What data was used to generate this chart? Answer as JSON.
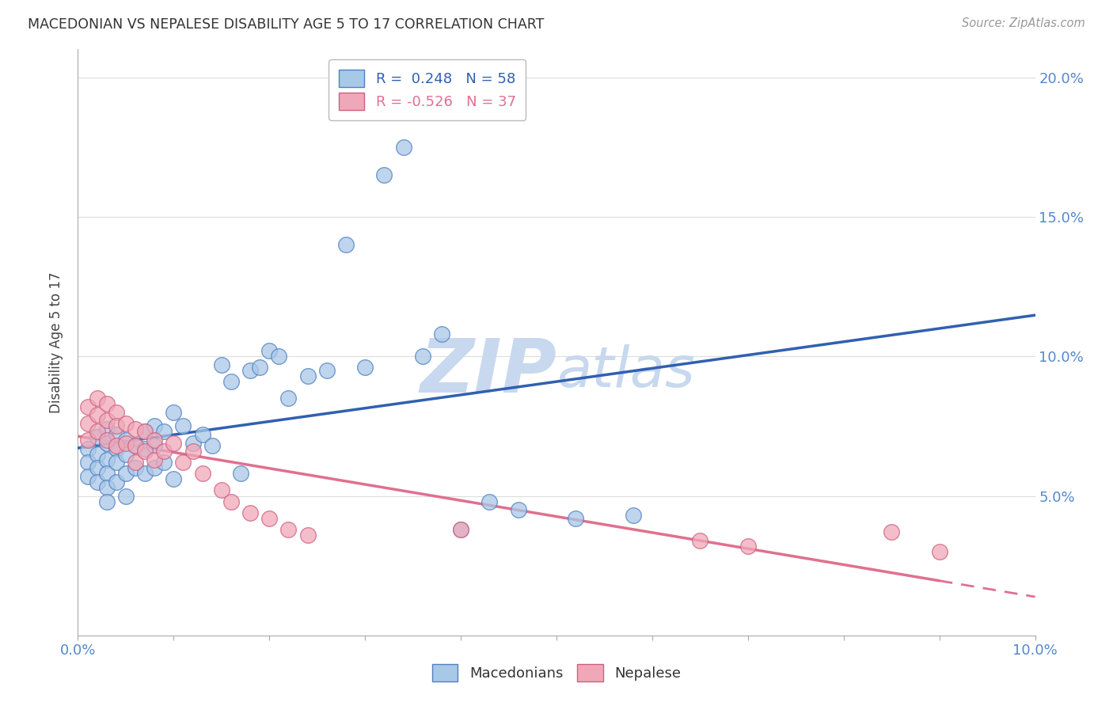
{
  "title": "MACEDONIAN VS NEPALESE DISABILITY AGE 5 TO 17 CORRELATION CHART",
  "source": "Source: ZipAtlas.com",
  "ylabel": "Disability Age 5 to 17",
  "xlim": [
    0.0,
    0.1
  ],
  "ylim": [
    0.0,
    0.21
  ],
  "yticks_right": [
    0.05,
    0.1,
    0.15,
    0.2
  ],
  "macedonian_R": 0.248,
  "macedonian_N": 58,
  "nepalese_R": -0.526,
  "nepalese_N": 37,
  "blue_fill": "#A8C8E8",
  "blue_edge": "#5080C0",
  "pink_fill": "#F0A8B8",
  "pink_edge": "#D06080",
  "blue_line": "#3060B0",
  "pink_line": "#E07090",
  "grid_color": "#DDDDDD",
  "background": "#FFFFFF",
  "watermark_color": "#C8D8EE",
  "macedonians_x": [
    0.001,
    0.001,
    0.001,
    0.002,
    0.002,
    0.002,
    0.002,
    0.003,
    0.003,
    0.003,
    0.003,
    0.003,
    0.003,
    0.004,
    0.004,
    0.004,
    0.004,
    0.005,
    0.005,
    0.005,
    0.005,
    0.006,
    0.006,
    0.007,
    0.007,
    0.007,
    0.008,
    0.008,
    0.008,
    0.009,
    0.009,
    0.01,
    0.01,
    0.011,
    0.012,
    0.013,
    0.014,
    0.015,
    0.016,
    0.017,
    0.018,
    0.019,
    0.02,
    0.021,
    0.022,
    0.024,
    0.026,
    0.028,
    0.03,
    0.032,
    0.034,
    0.036,
    0.038,
    0.04,
    0.043,
    0.046,
    0.052,
    0.058
  ],
  "macedonians_y": [
    0.067,
    0.062,
    0.057,
    0.071,
    0.065,
    0.06,
    0.055,
    0.074,
    0.069,
    0.063,
    0.058,
    0.053,
    0.048,
    0.072,
    0.067,
    0.062,
    0.055,
    0.07,
    0.065,
    0.058,
    0.05,
    0.068,
    0.06,
    0.073,
    0.067,
    0.058,
    0.075,
    0.068,
    0.06,
    0.073,
    0.062,
    0.08,
    0.056,
    0.075,
    0.069,
    0.072,
    0.068,
    0.097,
    0.091,
    0.058,
    0.095,
    0.096,
    0.102,
    0.1,
    0.085,
    0.093,
    0.095,
    0.14,
    0.096,
    0.165,
    0.175,
    0.1,
    0.108,
    0.038,
    0.048,
    0.045,
    0.042,
    0.043
  ],
  "nepalese_x": [
    0.001,
    0.001,
    0.001,
    0.002,
    0.002,
    0.002,
    0.003,
    0.003,
    0.003,
    0.004,
    0.004,
    0.004,
    0.005,
    0.005,
    0.006,
    0.006,
    0.006,
    0.007,
    0.007,
    0.008,
    0.008,
    0.009,
    0.01,
    0.011,
    0.012,
    0.013,
    0.015,
    0.016,
    0.018,
    0.02,
    0.022,
    0.024,
    0.04,
    0.065,
    0.07,
    0.085,
    0.09
  ],
  "nepalese_y": [
    0.082,
    0.076,
    0.07,
    0.085,
    0.079,
    0.073,
    0.083,
    0.077,
    0.07,
    0.08,
    0.075,
    0.068,
    0.076,
    0.069,
    0.074,
    0.068,
    0.062,
    0.073,
    0.066,
    0.07,
    0.063,
    0.066,
    0.069,
    0.062,
    0.066,
    0.058,
    0.052,
    0.048,
    0.044,
    0.042,
    0.038,
    0.036,
    0.038,
    0.034,
    0.032,
    0.037,
    0.03
  ]
}
